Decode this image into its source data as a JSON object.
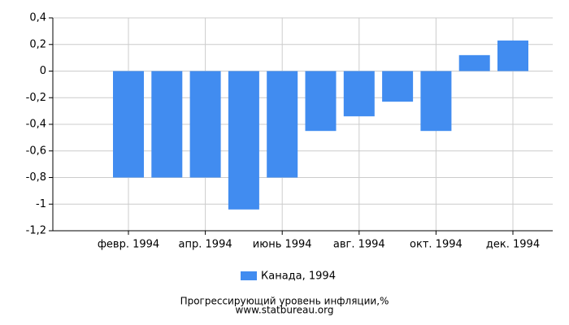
{
  "chart_data": {
    "type": "bar",
    "categories": [
      null,
      "февр. 1994",
      null,
      "апр. 1994",
      null,
      "июнь 1994",
      null,
      "авг. 1994",
      null,
      "окт. 1994",
      null,
      "дек. 1994"
    ],
    "series": [
      {
        "name": "Канада, 1994",
        "color": "#418cf0",
        "values": [
          0,
          -0.8,
          -0.8,
          -0.8,
          -1.04,
          -0.8,
          -0.45,
          -0.34,
          -0.23,
          -0.45,
          0.12,
          0.23
        ]
      }
    ],
    "ylim": [
      -1.2,
      0.4
    ],
    "yticks": [
      {
        "value": -1.2,
        "label": "-1,2"
      },
      -1,
      {
        "value": -0.8,
        "label": "-0,8"
      },
      {
        "value": -0.6,
        "label": "-0,6"
      },
      {
        "value": -0.4,
        "label": "-0,4"
      },
      {
        "value": -0.2,
        "label": "-0,2"
      },
      0,
      {
        "value": 0.2,
        "label": "0,2"
      },
      {
        "value": 0.4,
        "label": "0,4"
      }
    ],
    "grid": true,
    "legend": "bottom",
    "footer": [
      "Прогрессирующий уровень инфляции,%",
      "www.statbureau.org"
    ]
  }
}
